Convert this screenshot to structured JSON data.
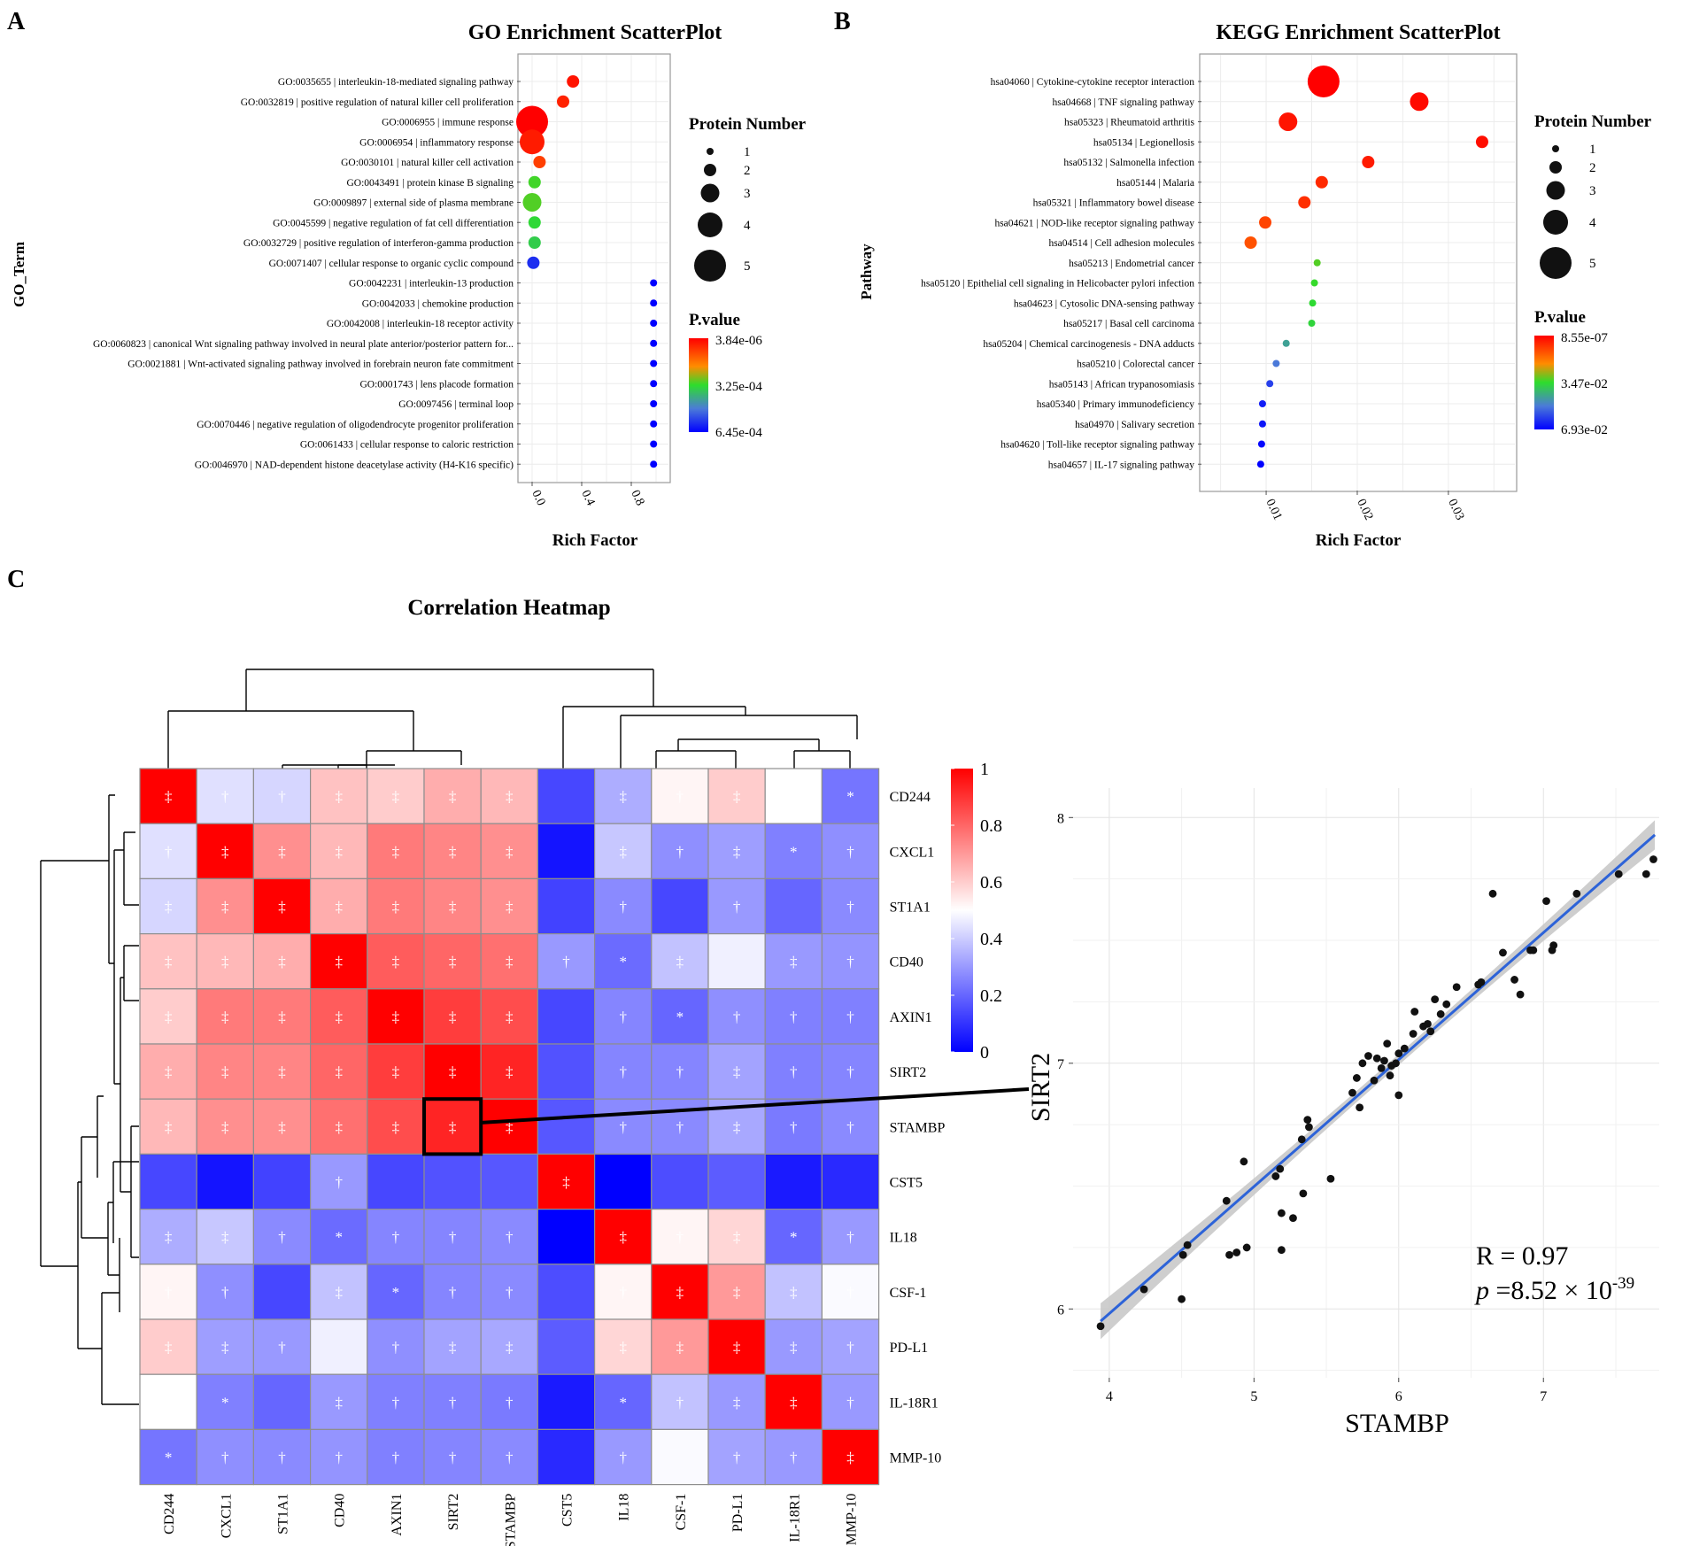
{
  "panel_labels": [
    "A",
    "B",
    "C"
  ],
  "chart_data": [
    {
      "id": "go",
      "type": "scatter",
      "title": "GO Enrichment ScatterPlot",
      "xlabel": "Rich Factor",
      "ylabel": "GO_Term",
      "xlim": [
        -0.1,
        1.1
      ],
      "xticks": [
        0.0,
        0.4,
        0.8
      ],
      "xtick_labels": [
        "0.0",
        "0.4",
        "0.8"
      ],
      "size_legend_title": "Protein Number",
      "size_levels": [
        1,
        2,
        3,
        4,
        5
      ],
      "color_legend_title": "P.value",
      "color_legend_labels": [
        "3.84e-06",
        "3.25e-04",
        "6.45e-04"
      ],
      "terms": [
        {
          "label": "GO:0035655 | interleukin-18-mediated signaling pathway",
          "rich": 0.33,
          "count": 2,
          "p": 3e-05
        },
        {
          "label": "GO:0032819 | positive regulation of natural killer cell proliferation",
          "rich": 0.25,
          "count": 2,
          "p": 5e-05
        },
        {
          "label": "GO:0006955 | immune response",
          "rich": 0.0,
          "count": 5,
          "p": 3.8e-06
        },
        {
          "label": "GO:0006954 | inflammatory response",
          "rich": 0.0,
          "count": 4,
          "p": 4e-05
        },
        {
          "label": "GO:0030101 | natural killer cell activation",
          "rich": 0.06,
          "count": 2,
          "p": 9e-05
        },
        {
          "label": "GO:0043491 | protein kinase B signaling",
          "rich": 0.02,
          "count": 2,
          "p": 0.00031
        },
        {
          "label": "GO:0009897 | external side of plasma membrane",
          "rich": 0.0,
          "count": 3,
          "p": 0.0003
        },
        {
          "label": "GO:0045599 | negative regulation of fat cell differentiation",
          "rich": 0.02,
          "count": 2,
          "p": 0.00033
        },
        {
          "label": "GO:0032729 | positive regulation of interferon-gamma production",
          "rich": 0.02,
          "count": 2,
          "p": 0.00035
        },
        {
          "label": "GO:0071407 | cellular response to organic cyclic compound",
          "rich": 0.01,
          "count": 2,
          "p": 0.00058
        },
        {
          "label": "GO:0042231 | interleukin-13 production",
          "rich": 0.98,
          "count": 1,
          "p": 0.00064
        },
        {
          "label": "GO:0042033 | chemokine production",
          "rich": 0.98,
          "count": 1,
          "p": 0.00064
        },
        {
          "label": "GO:0042008 | interleukin-18 receptor activity",
          "rich": 0.98,
          "count": 1,
          "p": 0.00064
        },
        {
          "label": "GO:0060823 | canonical Wnt signaling pathway involved in neural plate anterior/posterior pattern for...",
          "rich": 0.98,
          "count": 1,
          "p": 0.00064
        },
        {
          "label": "GO:0021881 | Wnt-activated signaling pathway involved in forebrain neuron fate commitment",
          "rich": 0.98,
          "count": 1,
          "p": 0.00064
        },
        {
          "label": "GO:0001743 | lens placode formation",
          "rich": 0.98,
          "count": 1,
          "p": 0.00064
        },
        {
          "label": "GO:0097456 | terminal loop",
          "rich": 0.98,
          "count": 1,
          "p": 0.00064
        },
        {
          "label": "GO:0070446 | negative regulation of oligodendrocyte progenitor proliferation",
          "rich": 0.98,
          "count": 1,
          "p": 0.00064
        },
        {
          "label": "GO:0061433 | cellular response to caloric restriction",
          "rich": 0.98,
          "count": 1,
          "p": 0.00064
        },
        {
          "label": "GO:0046970 | NAD-dependent histone deacetylase activity (H4-K16 specific)",
          "rich": 0.98,
          "count": 1,
          "p": 0.00064
        }
      ]
    },
    {
      "id": "kegg",
      "type": "scatter",
      "title": "KEGG Enrichment ScatterPlot",
      "xlabel": "Rich Factor",
      "ylabel": "Pathway",
      "xlim": [
        0.0029,
        0.0373
      ],
      "xticks": [
        0.01,
        0.02,
        0.03
      ],
      "xtick_labels": [
        "0.01",
        "0.02",
        "0.03"
      ],
      "size_legend_title": "Protein Number",
      "size_levels": [
        1,
        2,
        3,
        4,
        5
      ],
      "color_legend_title": "P.value",
      "color_legend_labels": [
        "8.55e-07",
        "3.47e-02",
        "6.93e-02"
      ],
      "terms": [
        {
          "label": "hsa04060 | Cytokine-cytokine receptor interaction",
          "rich": 0.0163,
          "count": 5,
          "p": 9e-07
        },
        {
          "label": "hsa04668 | TNF signaling pathway",
          "rich": 0.0268,
          "count": 3,
          "p": 0.0015
        },
        {
          "label": "hsa05323 | Rheumatoid arthritis",
          "rich": 0.0124,
          "count": 3,
          "p": 0.003
        },
        {
          "label": "hsa05134 | Legionellosis",
          "rich": 0.0337,
          "count": 2,
          "p": 0.002
        },
        {
          "label": "hsa05132 | Salmonella infection",
          "rich": 0.0212,
          "count": 2,
          "p": 0.004
        },
        {
          "label": "hsa05144 | Malaria",
          "rich": 0.0161,
          "count": 2,
          "p": 0.006
        },
        {
          "label": "hsa05321 | Inflammatory bowel disease",
          "rich": 0.0142,
          "count": 2,
          "p": 0.007
        },
        {
          "label": "hsa04621 | NOD-like receptor signaling pathway",
          "rich": 0.0099,
          "count": 2,
          "p": 0.01
        },
        {
          "label": "hsa04514 | Cell adhesion molecules",
          "rich": 0.0083,
          "count": 2,
          "p": 0.012
        },
        {
          "label": "hsa05213 | Endometrial cancer",
          "rich": 0.0156,
          "count": 1,
          "p": 0.032
        },
        {
          "label": "hsa05120 | Epithelial cell signaling in Helicobacter pylori infection",
          "rich": 0.0153,
          "count": 1,
          "p": 0.034
        },
        {
          "label": "hsa04623 | Cytosolic DNA-sensing pathway",
          "rich": 0.0151,
          "count": 1,
          "p": 0.035
        },
        {
          "label": "hsa05217 | Basal cell carcinoma",
          "rich": 0.015,
          "count": 1,
          "p": 0.036
        },
        {
          "label": "hsa05204 | Chemical carcinogenesis - DNA adducts",
          "rich": 0.0122,
          "count": 1,
          "p": 0.045
        },
        {
          "label": "hsa05210 | Colorectal cancer",
          "rich": 0.0111,
          "count": 1,
          "p": 0.052
        },
        {
          "label": "hsa05143 | African trypanosomiasis",
          "rich": 0.0104,
          "count": 1,
          "p": 0.06
        },
        {
          "label": "hsa05340 | Primary immunodeficiency",
          "rich": 0.0096,
          "count": 1,
          "p": 0.065
        },
        {
          "label": "hsa04970 | Salivary secretion",
          "rich": 0.0096,
          "count": 1,
          "p": 0.066
        },
        {
          "label": "hsa04620 | Toll-like receptor signaling pathway",
          "rich": 0.0095,
          "count": 1,
          "p": 0.068
        },
        {
          "label": "hsa04657 | IL-17 signaling pathway",
          "rich": 0.0094,
          "count": 1,
          "p": 0.069
        }
      ]
    },
    {
      "id": "heatmap",
      "type": "heatmap",
      "title": "Correlation Heatmap",
      "rows": [
        "CD244",
        "CXCL1",
        "ST1A1",
        "CD40",
        "AXIN1",
        "SIRT2",
        "STAMBP",
        "CST5",
        "IL18",
        "CSF-1",
        "PD-L1",
        "IL-18R1",
        "MMP-10"
      ],
      "cols": [
        "CD244",
        "CXCL1",
        "ST1A1",
        "CD40",
        "AXIN1",
        "SIRT2",
        "STAMBP",
        "CST5",
        "IL18",
        "CSF-1",
        "PD-L1",
        "IL-18R1",
        "MMP-10"
      ],
      "color_scale": {
        "min": 0,
        "max": 1,
        "ticks": [
          1,
          0.8,
          0.6,
          0.4,
          0.2,
          0
        ],
        "tick_labels": [
          "1",
          "0.8",
          "0.6",
          "0.4",
          "0.2",
          "0"
        ],
        "low": "#0000ff",
        "mid": "#ffffff",
        "high": "#ff0000"
      },
      "highlight": {
        "row": "STAMBP",
        "col": "SIRT2"
      },
      "values": [
        [
          1.0,
          0.44,
          0.42,
          0.62,
          0.6,
          0.66,
          0.64,
          0.14,
          0.34,
          0.52,
          0.6,
          0.5,
          0.23
        ],
        [
          0.44,
          1.0,
          0.72,
          0.64,
          0.76,
          0.74,
          0.72,
          0.04,
          0.39,
          0.28,
          0.31,
          0.25,
          0.28
        ],
        [
          0.42,
          0.72,
          1.0,
          0.66,
          0.76,
          0.74,
          0.72,
          0.13,
          0.27,
          0.14,
          0.3,
          0.2,
          0.27
        ],
        [
          0.62,
          0.64,
          0.66,
          1.0,
          0.82,
          0.8,
          0.78,
          0.3,
          0.21,
          0.38,
          0.47,
          0.3,
          0.29
        ],
        [
          0.6,
          0.76,
          0.76,
          0.82,
          1.0,
          0.88,
          0.85,
          0.14,
          0.26,
          0.2,
          0.28,
          0.25,
          0.25
        ],
        [
          0.66,
          0.74,
          0.74,
          0.8,
          0.88,
          1.0,
          0.93,
          0.16,
          0.26,
          0.26,
          0.32,
          0.25,
          0.26
        ],
        [
          0.64,
          0.72,
          0.72,
          0.78,
          0.85,
          0.93,
          1.0,
          0.17,
          0.27,
          0.27,
          0.33,
          0.24,
          0.27
        ],
        [
          0.14,
          0.04,
          0.13,
          0.3,
          0.14,
          0.16,
          0.17,
          1.0,
          0.0,
          0.15,
          0.18,
          0.05,
          0.08
        ],
        [
          0.34,
          0.39,
          0.27,
          0.21,
          0.26,
          0.26,
          0.27,
          0.0,
          1.0,
          0.52,
          0.58,
          0.2,
          0.3
        ],
        [
          0.52,
          0.28,
          0.14,
          0.38,
          0.2,
          0.26,
          0.27,
          0.15,
          0.52,
          1.0,
          0.7,
          0.38,
          0.49
        ],
        [
          0.6,
          0.31,
          0.3,
          0.47,
          0.28,
          0.32,
          0.33,
          0.18,
          0.58,
          0.7,
          1.0,
          0.3,
          0.32
        ],
        [
          0.5,
          0.25,
          0.2,
          0.3,
          0.25,
          0.25,
          0.24,
          0.05,
          0.2,
          0.38,
          0.3,
          1.0,
          0.3
        ],
        [
          0.23,
          0.28,
          0.27,
          0.29,
          0.25,
          0.26,
          0.27,
          0.08,
          0.3,
          0.49,
          0.32,
          0.3,
          1.0
        ]
      ],
      "marks": [
        [
          "‡",
          "†",
          "†",
          "‡",
          "‡",
          "‡",
          "‡",
          "",
          "‡",
          "†",
          "‡",
          "†",
          "*"
        ],
        [
          "†",
          "‡",
          "‡",
          "‡",
          "‡",
          "‡",
          "‡",
          "",
          "‡",
          "†",
          "‡",
          "*",
          "†"
        ],
        [
          "‡",
          "‡",
          "‡",
          "‡",
          "‡",
          "‡",
          "‡",
          "",
          "†",
          "",
          "†",
          "",
          "†"
        ],
        [
          "‡",
          "‡",
          "‡",
          "‡",
          "‡",
          "‡",
          "‡",
          "†",
          "*",
          "‡",
          "",
          "‡",
          "†"
        ],
        [
          "‡",
          "‡",
          "‡",
          "‡",
          "‡",
          "‡",
          "‡",
          "",
          "†",
          "*",
          "†",
          "†",
          "†"
        ],
        [
          "‡",
          "‡",
          "‡",
          "‡",
          "‡",
          "‡",
          "‡",
          "",
          "†",
          "†",
          "‡",
          "†",
          "†"
        ],
        [
          "‡",
          "‡",
          "‡",
          "‡",
          "‡",
          "‡",
          "‡",
          "",
          "†",
          "†",
          "‡",
          "†",
          "†"
        ],
        [
          "",
          "",
          "",
          "†",
          "",
          "",
          "",
          "‡",
          "",
          "",
          "",
          "",
          ""
        ],
        [
          "‡",
          "‡",
          "†",
          "*",
          "†",
          "†",
          "†",
          "",
          "‡",
          "†",
          "‡",
          "*",
          "†"
        ],
        [
          "†",
          "†",
          "",
          "‡",
          "*",
          "†",
          "†",
          "",
          "†",
          "‡",
          "‡",
          "‡",
          "†"
        ],
        [
          "‡",
          "‡",
          "†",
          "",
          "†",
          "‡",
          "‡",
          "",
          "‡",
          "‡",
          "‡",
          "‡",
          "†"
        ],
        [
          "†",
          "*",
          "",
          "‡",
          "†",
          "†",
          "†",
          "",
          "*",
          "†",
          "‡",
          "‡",
          "†"
        ],
        [
          "*",
          "†",
          "†",
          "†",
          "†",
          "†",
          "†",
          "",
          "†",
          "",
          "†",
          "†",
          "‡"
        ]
      ]
    },
    {
      "id": "corr",
      "type": "scatter",
      "title": "",
      "xlabel": "STAMBP",
      "ylabel": "SIRT2",
      "xlim": [
        3.75,
        7.8
      ],
      "ylim": [
        5.72,
        8.12
      ],
      "xticks": [
        4,
        5,
        6,
        7
      ],
      "xtick_labels": [
        "4",
        "5",
        "6",
        "7"
      ],
      "yticks": [
        6,
        7,
        8
      ],
      "ytick_labels": [
        "6",
        "7",
        "8"
      ],
      "fit": {
        "slope": 0.5168,
        "intercept": 3.914,
        "x_range": [
          3.94,
          7.77
        ]
      },
      "annotation": {
        "r_text": "R = 0.97",
        "p_prefix": "p",
        "p_value_text": " =8.52 × 10",
        "p_exponent": "-39"
      },
      "points": [
        [
          3.94,
          5.93
        ],
        [
          4.24,
          6.08
        ],
        [
          4.5,
          6.04
        ],
        [
          4.51,
          6.22
        ],
        [
          4.54,
          6.26
        ],
        [
          4.81,
          6.44
        ],
        [
          4.83,
          6.22
        ],
        [
          4.88,
          6.23
        ],
        [
          4.93,
          6.6
        ],
        [
          4.95,
          6.25
        ],
        [
          5.15,
          6.54
        ],
        [
          5.18,
          6.57
        ],
        [
          5.19,
          6.39
        ],
        [
          5.19,
          6.24
        ],
        [
          5.27,
          6.37
        ],
        [
          5.33,
          6.69
        ],
        [
          5.34,
          6.47
        ],
        [
          5.37,
          6.77
        ],
        [
          5.38,
          6.74
        ],
        [
          5.53,
          6.53
        ],
        [
          5.68,
          6.88
        ],
        [
          5.71,
          6.94
        ],
        [
          5.73,
          6.82
        ],
        [
          5.75,
          7.0
        ],
        [
          5.79,
          7.03
        ],
        [
          5.83,
          6.93
        ],
        [
          5.85,
          7.02
        ],
        [
          5.88,
          6.98
        ],
        [
          5.9,
          7.01
        ],
        [
          5.92,
          7.08
        ],
        [
          5.94,
          6.95
        ],
        [
          5.95,
          6.99
        ],
        [
          5.98,
          7.0
        ],
        [
          6.0,
          6.87
        ],
        [
          6.0,
          7.04
        ],
        [
          6.04,
          7.06
        ],
        [
          6.1,
          7.12
        ],
        [
          6.11,
          7.21
        ],
        [
          6.17,
          7.15
        ],
        [
          6.2,
          7.16
        ],
        [
          6.22,
          7.13
        ],
        [
          6.25,
          7.26
        ],
        [
          6.29,
          7.2
        ],
        [
          6.33,
          7.24
        ],
        [
          6.4,
          7.31
        ],
        [
          6.55,
          7.32
        ],
        [
          6.57,
          7.33
        ],
        [
          6.65,
          7.69
        ],
        [
          6.72,
          7.45
        ],
        [
          6.8,
          7.34
        ],
        [
          6.84,
          7.28
        ],
        [
          6.91,
          7.46
        ],
        [
          6.93,
          7.46
        ],
        [
          7.02,
          7.66
        ],
        [
          7.06,
          7.46
        ],
        [
          7.07,
          7.48
        ],
        [
          7.23,
          7.69
        ],
        [
          7.52,
          7.77
        ],
        [
          7.71,
          7.77
        ],
        [
          7.76,
          7.83
        ]
      ]
    }
  ]
}
